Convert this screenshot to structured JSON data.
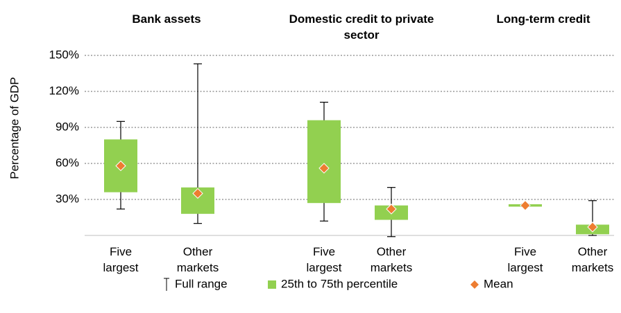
{
  "chart_data": {
    "type": "box",
    "ylabel": "Percentage of GDP",
    "groups": [
      "Bank assets",
      "Domestic credit to private sector",
      "Long-term credit"
    ],
    "categories": [
      "Five largest",
      "Other markets",
      "Five largest",
      "Other markets",
      "Five largest",
      "Other markets"
    ],
    "min": [
      22,
      10,
      12,
      -1,
      24,
      0
    ],
    "q1": [
      36,
      18,
      27,
      13,
      24,
      1
    ],
    "q3": [
      80,
      40,
      96,
      25,
      26,
      9
    ],
    "max": [
      95,
      143,
      111,
      40,
      26,
      29
    ],
    "mean": [
      58,
      35,
      56,
      22,
      25,
      7
    ],
    "ylim": [
      0,
      150
    ],
    "yticks": [
      {
        "value": 30,
        "label": "30%"
      },
      {
        "value": 60,
        "label": "60%"
      },
      {
        "value": 90,
        "label": "90%"
      },
      {
        "value": 120,
        "label": "120%"
      },
      {
        "value": 150,
        "label": "150%"
      }
    ],
    "grid": true,
    "legend": {
      "range": "Full range",
      "box": "25th to 75th percentile",
      "mean": "Mean"
    },
    "box_color": "#92d050",
    "mean_color": "#ed7d31",
    "whisker_color": "#000000"
  }
}
